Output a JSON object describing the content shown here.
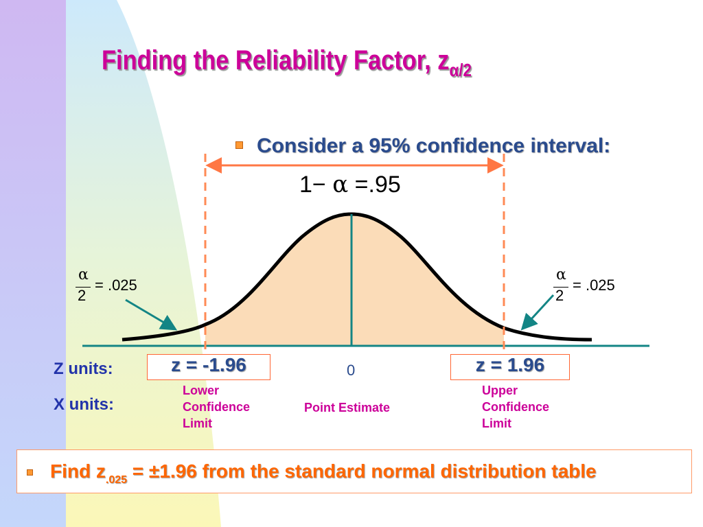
{
  "slide": {
    "title": "Finding the Reliability Factor, z",
    "title_subscript": "α/2",
    "bullet1": "Consider a 95% confidence interval:",
    "equation_main": {
      "one": "1",
      "minus": "−",
      "alpha": "α",
      "equals": "=",
      "value": ".95"
    },
    "left_tail": {
      "num": "α",
      "den": "2",
      "rest": "= .025"
    },
    "right_tail": {
      "num": "α",
      "den": "2",
      "rest": "= .025"
    },
    "z_units_label": "Z units:",
    "x_units_label": "X units:",
    "z_lower": "z = -1.96",
    "z_upper": "z = 1.96",
    "zero": "0",
    "lower_limit": [
      "Lower",
      "Confidence",
      "Limit"
    ],
    "point_estimate": "Point Estimate",
    "upper_limit": [
      "Upper",
      "Confidence",
      "Limit"
    ],
    "find_prefix": "Find z",
    "find_subscript": ".025",
    "find_suffix": " = ±1.96 from the standard normal distribution table"
  },
  "colors": {
    "title": "#cc0099",
    "bullet_text": "#2a4b8d",
    "curve_fill": "#fbdcb8",
    "axis_line": "#138585",
    "dashed_lines": "#ff8a55",
    "find_text": "#ff6600"
  },
  "icons": [
    "bullet-square-icon",
    "double-arrow-icon",
    "pointer-arrow-icon"
  ]
}
